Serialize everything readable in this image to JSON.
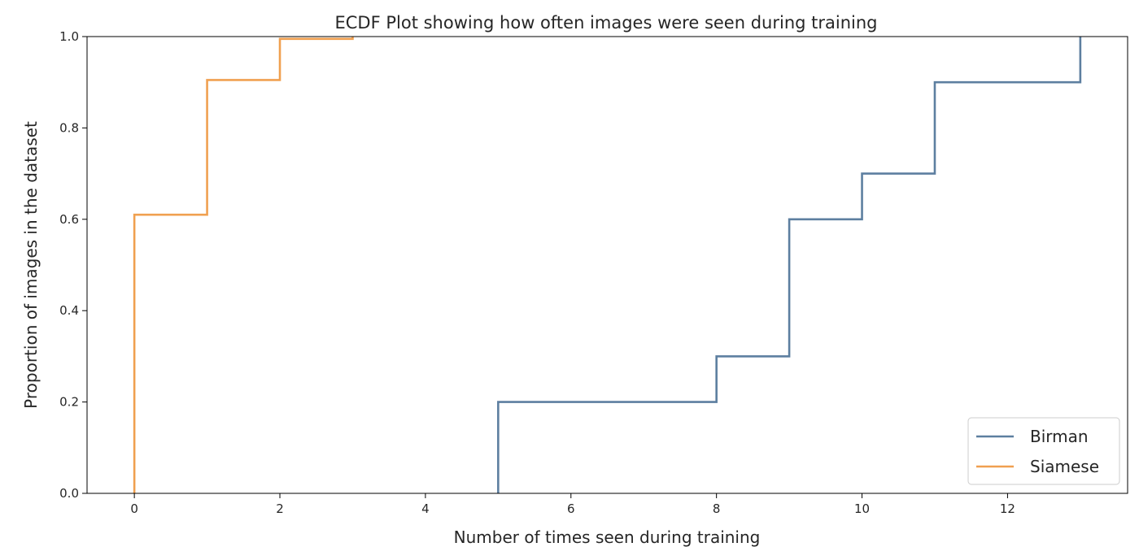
{
  "chart_data": {
    "type": "line",
    "subtype": "ecdf-step",
    "title": "ECDF Plot showing how often images were seen during training",
    "xlabel": "Number of times seen during training",
    "ylabel": "Proportion of images in the dataset",
    "xlim": [
      -0.65,
      13.65
    ],
    "ylim": [
      0.0,
      1.0
    ],
    "xticks": [
      0,
      2,
      4,
      6,
      8,
      10,
      12
    ],
    "xtick_labels": [
      "0",
      "2",
      "4",
      "6",
      "8",
      "10",
      "12"
    ],
    "yticks": [
      0.0,
      0.2,
      0.4,
      0.6,
      0.8,
      1.0
    ],
    "ytick_labels": [
      "0.0",
      "0.2",
      "0.4",
      "0.6",
      "0.8",
      "1.0"
    ],
    "grid": false,
    "legend_position": "lower-right",
    "series": [
      {
        "name": "Birman",
        "color": "#5d7fa0",
        "steps": [
          {
            "x": 5,
            "y": 0.2
          },
          {
            "x": 8,
            "y": 0.3
          },
          {
            "x": 9,
            "y": 0.6
          },
          {
            "x": 10,
            "y": 0.7
          },
          {
            "x": 11,
            "y": 0.9
          },
          {
            "x": 13,
            "y": 1.0
          }
        ]
      },
      {
        "name": "Siamese",
        "color": "#f0a050",
        "steps": [
          {
            "x": 0,
            "y": 0.61
          },
          {
            "x": 1,
            "y": 0.905
          },
          {
            "x": 2,
            "y": 0.995
          },
          {
            "x": 3,
            "y": 1.0
          }
        ]
      }
    ]
  }
}
